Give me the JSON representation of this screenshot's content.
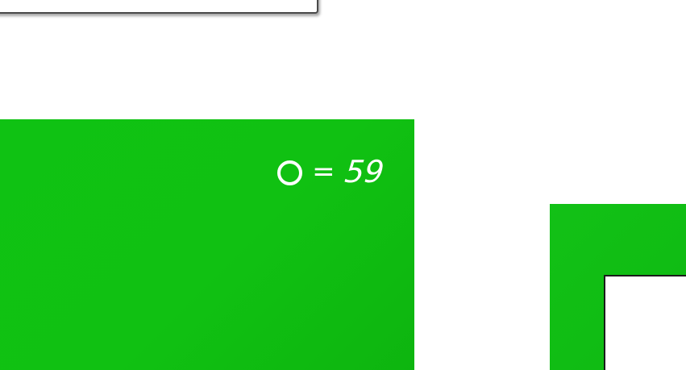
{
  "colors": {
    "panel_green": "#10c112",
    "background": "#ffffff",
    "frame_border": "#4a4a4a",
    "text": "#ffffff"
  },
  "score": {
    "icon": "circle-icon",
    "equals": "=",
    "value": "59"
  }
}
